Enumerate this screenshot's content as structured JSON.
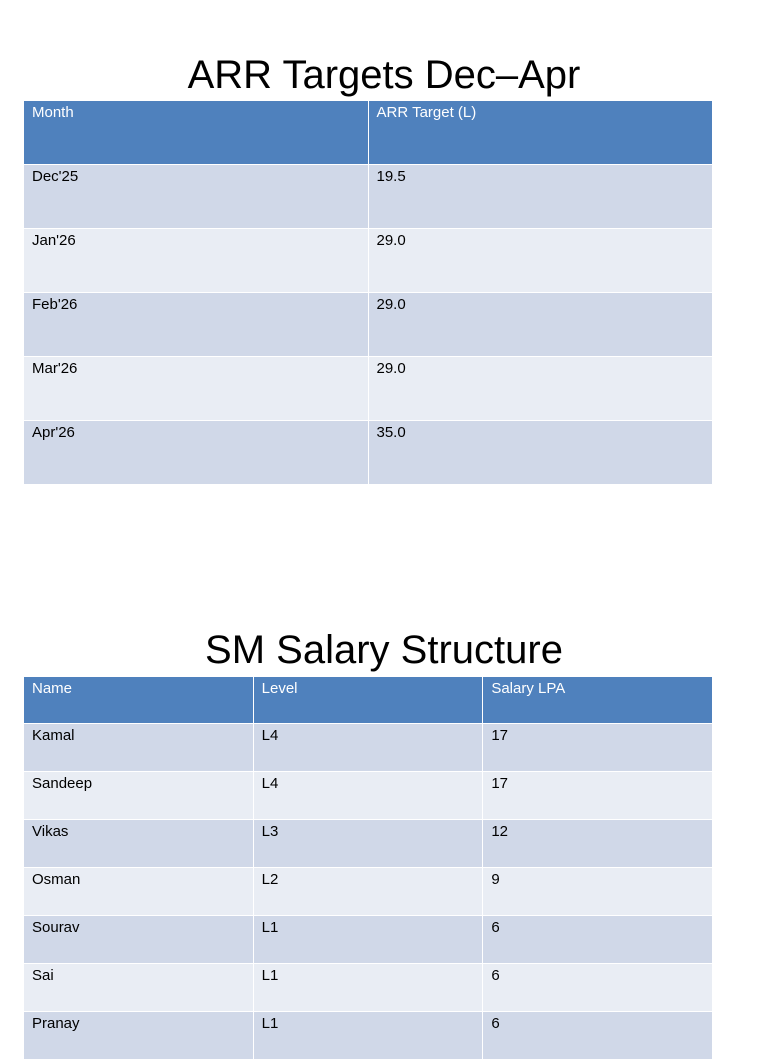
{
  "sections": [
    {
      "title": "ARR Targets Dec–Apr",
      "table": {
        "header": [
          "Month",
          "ARR Target (L)"
        ],
        "rows": [
          [
            "Dec'25",
            "19.5"
          ],
          [
            "Jan'26",
            "29.0"
          ],
          [
            "Feb'26",
            "29.0"
          ],
          [
            "Mar'26",
            "29.0"
          ],
          [
            "Apr'26",
            "35.0"
          ]
        ]
      }
    },
    {
      "title": "SM Salary Structure",
      "table": {
        "header": [
          "Name",
          "Level",
          "Salary LPA"
        ],
        "rows": [
          [
            "Kamal",
            "L4",
            "17"
          ],
          [
            "Sandeep",
            "L4",
            "17"
          ],
          [
            "Vikas",
            "L3",
            "12"
          ],
          [
            "Osman",
            "L2",
            "9"
          ],
          [
            "Sourav",
            "L1",
            "6"
          ],
          [
            "Sai",
            "L1",
            "6"
          ],
          [
            "Pranay",
            "L1",
            "6"
          ]
        ]
      }
    }
  ]
}
